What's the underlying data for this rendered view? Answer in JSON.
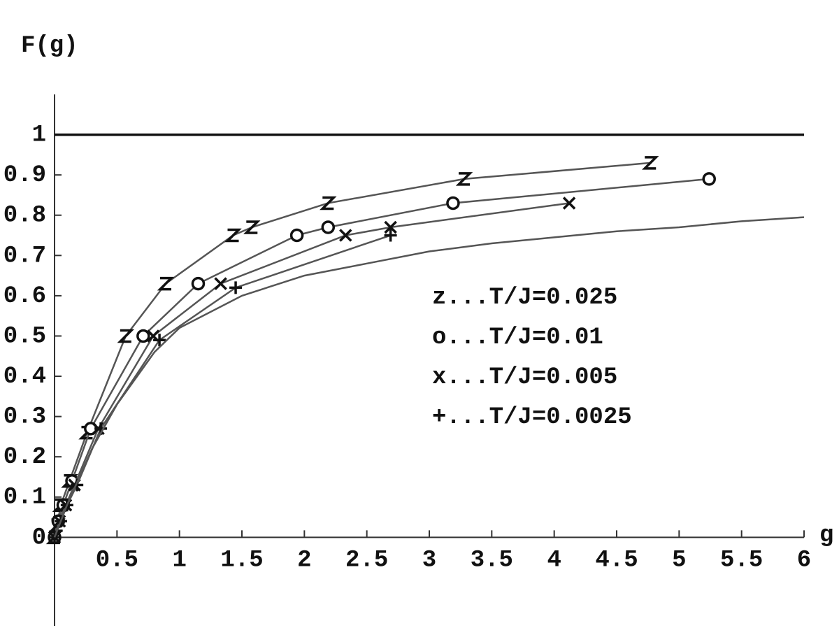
{
  "chart_data": {
    "type": "line",
    "xlabel": "g",
    "ylabel": "F(g)",
    "xlim": [
      0,
      6
    ],
    "ylim": [
      -0.22,
      1.1
    ],
    "xticks": [
      0.5,
      1,
      1.5,
      2,
      2.5,
      3,
      3.5,
      4,
      4.5,
      5,
      5.5,
      6
    ],
    "yticks": [
      0,
      0.1,
      0.2,
      0.3,
      0.4,
      0.5,
      0.6,
      0.7,
      0.8,
      0.9,
      1
    ],
    "hline": 1,
    "series": [
      {
        "name": "z...T/J=0.025",
        "marker": "z",
        "color": "#555555",
        "x": [
          0,
          0.02,
          0.05,
          0.12,
          0.26,
          0.57,
          0.89,
          1.43,
          1.58,
          2.19,
          3.28,
          4.77
        ],
        "values": [
          0,
          0.03,
          0.08,
          0.14,
          0.26,
          0.5,
          0.63,
          0.75,
          0.77,
          0.83,
          0.89,
          0.93
        ]
      },
      {
        "name": "o...T/J=0.01",
        "marker": "o",
        "color": "#555555",
        "x": [
          0,
          0.03,
          0.07,
          0.14,
          0.29,
          0.71,
          1.15,
          1.94,
          2.19,
          3.19,
          5.24
        ],
        "values": [
          0,
          0.04,
          0.08,
          0.14,
          0.27,
          0.5,
          0.63,
          0.75,
          0.77,
          0.83,
          0.89
        ]
      },
      {
        "name": "x...T/J=0.005",
        "marker": "x",
        "color": "#555555",
        "x": [
          0,
          0.04,
          0.09,
          0.16,
          0.35,
          0.79,
          1.33,
          2.33,
          2.69,
          4.12
        ],
        "values": [
          0,
          0.04,
          0.08,
          0.13,
          0.27,
          0.5,
          0.63,
          0.75,
          0.77,
          0.83
        ]
      },
      {
        "name": "+...T/J=0.0025",
        "marker": "+",
        "color": "#555555",
        "x": [
          0,
          0.05,
          0.1,
          0.18,
          0.37,
          0.84,
          1.45,
          2.69
        ],
        "values": [
          0,
          0.04,
          0.08,
          0.13,
          0.27,
          0.49,
          0.62,
          0.75
        ]
      },
      {
        "color": "#555555",
        "x": [
          0,
          0.1,
          0.3,
          0.5,
          0.8,
          1,
          1.5,
          2,
          2.5,
          3,
          3.5,
          4,
          4.5,
          5,
          5.5,
          6
        ],
        "values": [
          0,
          0.08,
          0.22,
          0.33,
          0.46,
          0.52,
          0.6,
          0.65,
          0.68,
          0.71,
          0.73,
          0.745,
          0.76,
          0.77,
          0.785,
          0.795
        ]
      }
    ]
  }
}
